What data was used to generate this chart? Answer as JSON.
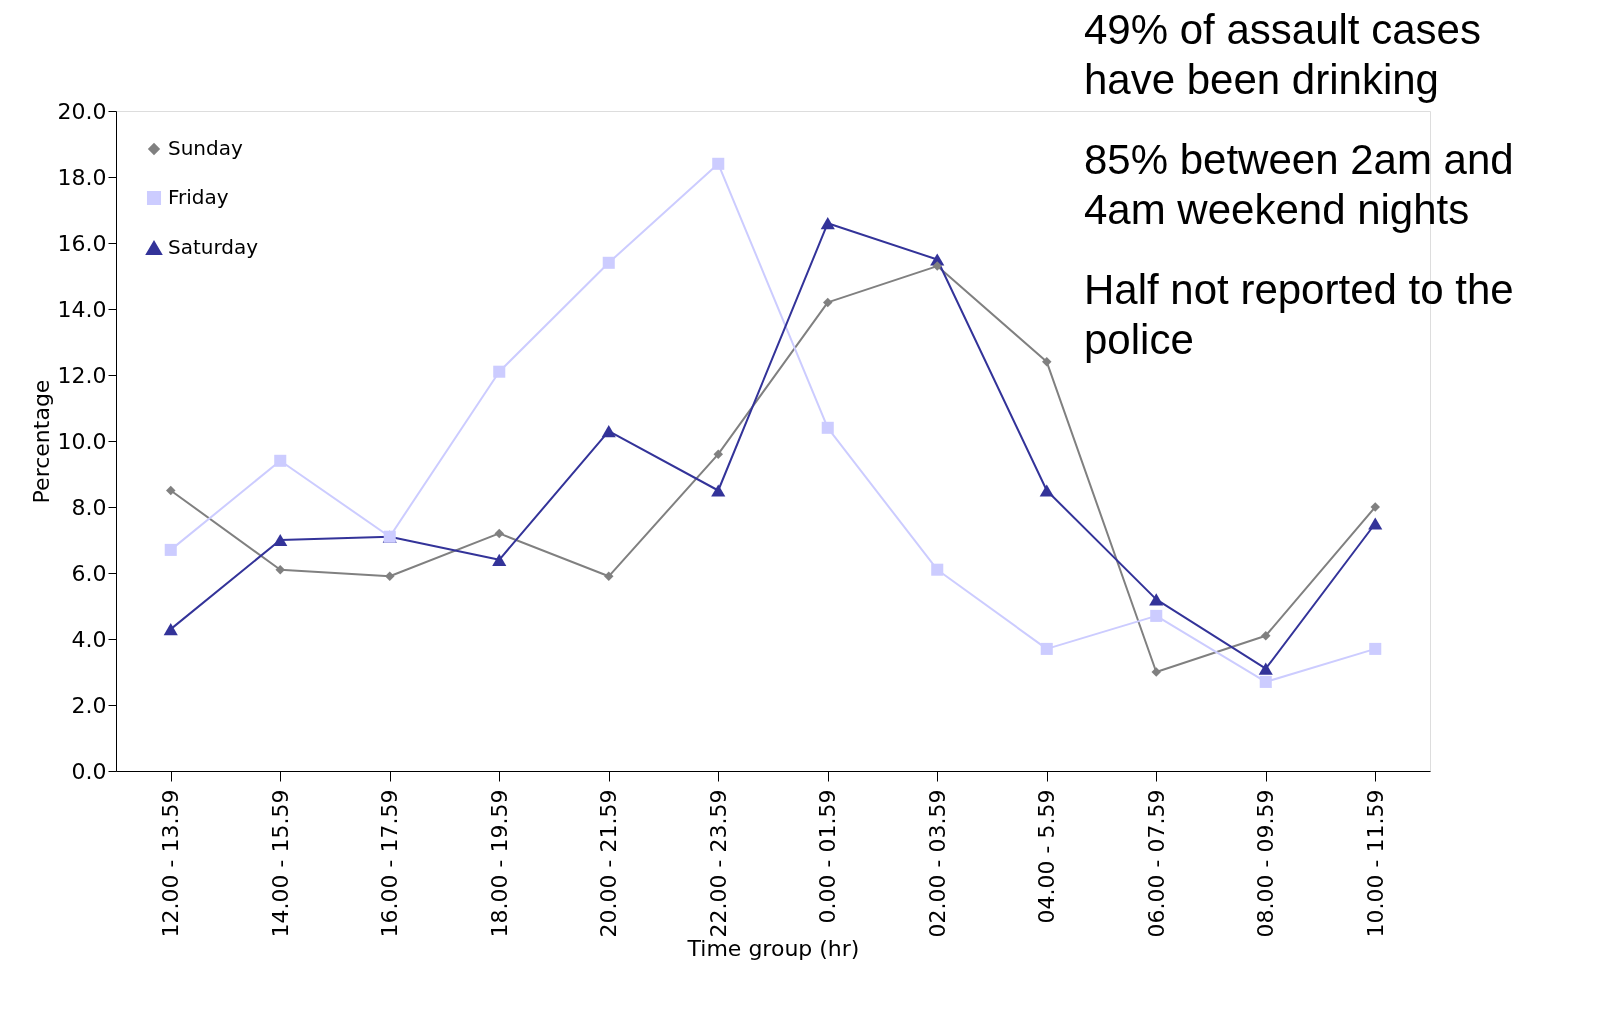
{
  "chart_data": {
    "type": "line",
    "xlabel": "Time group (hr)",
    "ylabel": "Percentage",
    "categories": [
      "12.00 - 13.59",
      "14.00 - 15.59",
      "16.00 - 17.59",
      "18.00 - 19.59",
      "20.00 - 21.59",
      "22.00 - 23.59",
      "0.00 - 01.59",
      "02.00 - 03.59",
      "04.00 - 5.59",
      "06.00 - 07.59",
      "08.00 - 09.59",
      "10.00 - 11.59"
    ],
    "series": [
      {
        "name": "Sunday",
        "color": "#808080",
        "marker": "diamond",
        "values": [
          8.5,
          6.1,
          5.9,
          7.2,
          5.9,
          9.6,
          14.2,
          15.3,
          12.4,
          3.0,
          4.1,
          8.0
        ]
      },
      {
        "name": "Friday",
        "color": "#ccccff",
        "marker": "square",
        "values": [
          6.7,
          9.4,
          7.1,
          12.1,
          15.4,
          18.4,
          10.4,
          6.1,
          3.7,
          4.7,
          2.7,
          3.7
        ]
      },
      {
        "name": "Saturday",
        "color": "#333399",
        "marker": "triangle",
        "values": [
          4.3,
          7.0,
          7.1,
          6.4,
          10.3,
          8.5,
          16.6,
          15.5,
          8.5,
          5.2,
          3.1,
          7.5
        ]
      }
    ],
    "ylim": [
      0,
      20
    ],
    "yticks": [
      {
        "value": 0,
        "label": "0.0"
      },
      {
        "value": 2,
        "label": "2.0"
      },
      {
        "value": 4,
        "label": "4.0"
      },
      {
        "value": 6,
        "label": "6.0"
      },
      {
        "value": 8,
        "label": "8.0"
      },
      {
        "value": 10,
        "label": "10.0"
      },
      {
        "value": 12,
        "label": "12.0"
      },
      {
        "value": 14,
        "label": "14.0"
      },
      {
        "value": 16,
        "label": "16.0"
      },
      {
        "value": 18,
        "label": "18.0"
      },
      {
        "value": 20,
        "label": "20.0"
      }
    ],
    "grid": false,
    "legend": "top left",
    "line_style": "solid",
    "annotations": [
      "49% of assault cases\nhave been drinking",
      "85% between 2am and\n4am weekend nights",
      "Half not reported to the\npolice"
    ]
  }
}
